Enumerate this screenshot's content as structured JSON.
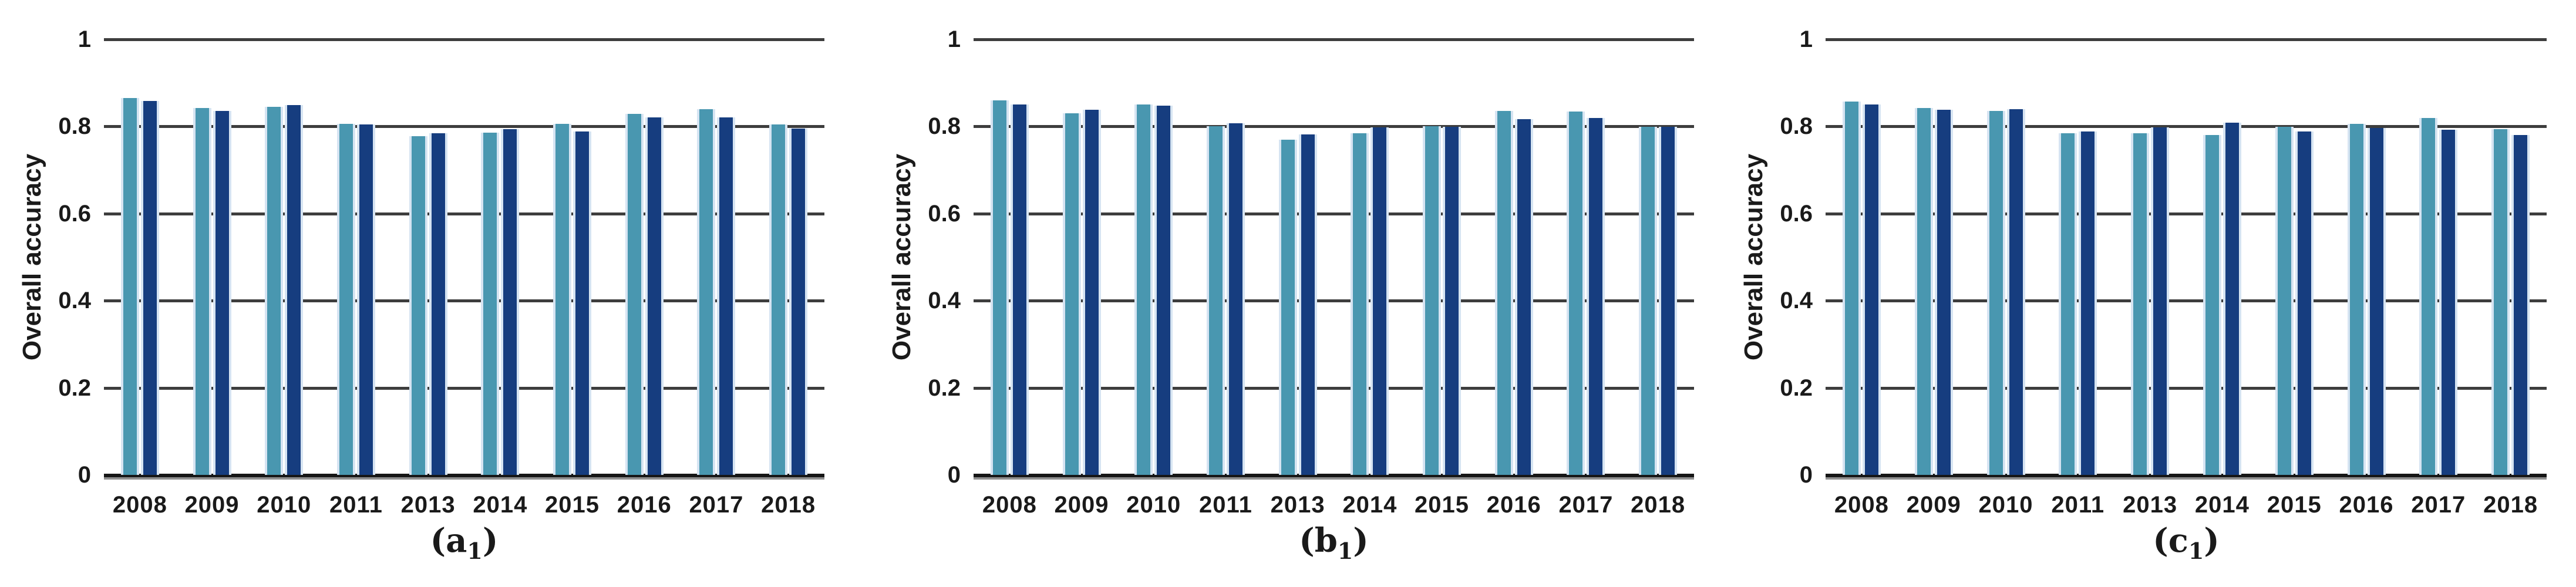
{
  "figure": {
    "ylabel": "Overall accuracy",
    "ytick_labels": [
      "1",
      "0.8",
      "0.6",
      "0.4",
      "0.2",
      "0"
    ],
    "colors": {
      "series_light_blue": "#4997b0",
      "series_dark_blue": "#163d7f",
      "bar_edge_stripe": "#d6e4f2",
      "gridline": "#3d3d3d",
      "baseline": "#161616",
      "text": "#1a1a1a"
    }
  },
  "chart_data": [
    {
      "id": "a1",
      "type": "bar",
      "title": "",
      "xlabel": "",
      "ylabel": "Overall accuracy",
      "caption": {
        "prefix": "(",
        "letter": "a",
        "subscript": "1",
        "suffix": ")"
      },
      "categories": [
        "2008",
        "2009",
        "2010",
        "2011",
        "2013",
        "2014",
        "2015",
        "2016",
        "2017",
        "2018"
      ],
      "yticks": [
        1,
        0.8,
        0.6,
        0.4,
        0.2,
        0
      ],
      "ylim": [
        0,
        1
      ],
      "grid": "horizontal",
      "legend": "none",
      "series": [
        {
          "name": "light-blue",
          "color": "#4997b0",
          "values": [
            0.865,
            0.842,
            0.845,
            0.806,
            0.778,
            0.786,
            0.806,
            0.829,
            0.839,
            0.804
          ]
        },
        {
          "name": "dark-blue",
          "color": "#163d7f",
          "values": [
            0.858,
            0.835,
            0.849,
            0.804,
            0.785,
            0.794,
            0.789,
            0.821,
            0.821,
            0.795
          ]
        }
      ]
    },
    {
      "id": "b1",
      "type": "bar",
      "title": "",
      "xlabel": "",
      "ylabel": "Overall accuracy",
      "caption": {
        "prefix": "(",
        "letter": "b",
        "subscript": "1",
        "suffix": ")"
      },
      "categories": [
        "2008",
        "2009",
        "2010",
        "2011",
        "2013",
        "2014",
        "2015",
        "2016",
        "2017",
        "2018"
      ],
      "yticks": [
        1,
        0.8,
        0.6,
        0.4,
        0.2,
        0
      ],
      "ylim": [
        0,
        1
      ],
      "grid": "horizontal",
      "legend": "none",
      "series": [
        {
          "name": "light-blue",
          "color": "#4997b0",
          "values": [
            0.86,
            0.83,
            0.851,
            0.801,
            0.769,
            0.784,
            0.8,
            0.835,
            0.834,
            0.799
          ]
        },
        {
          "name": "dark-blue",
          "color": "#163d7f",
          "values": [
            0.851,
            0.838,
            0.848,
            0.807,
            0.782,
            0.798,
            0.799,
            0.817,
            0.82,
            0.799
          ]
        }
      ]
    },
    {
      "id": "c1",
      "type": "bar",
      "title": "",
      "xlabel": "",
      "ylabel": "Overall accuracy",
      "caption": {
        "prefix": "(",
        "letter": "c",
        "subscript": "1",
        "suffix": ")"
      },
      "categories": [
        "2008",
        "2009",
        "2010",
        "2011",
        "2013",
        "2014",
        "2015",
        "2016",
        "2017",
        "2018"
      ],
      "yticks": [
        1,
        0.8,
        0.6,
        0.4,
        0.2,
        0
      ],
      "ylim": [
        0,
        1
      ],
      "grid": "horizontal",
      "legend": "none",
      "series": [
        {
          "name": "light-blue",
          "color": "#4997b0",
          "values": [
            0.857,
            0.843,
            0.835,
            0.784,
            0.785,
            0.781,
            0.799,
            0.806,
            0.819,
            0.794
          ]
        },
        {
          "name": "dark-blue",
          "color": "#163d7f",
          "values": [
            0.85,
            0.838,
            0.839,
            0.788,
            0.798,
            0.808,
            0.789,
            0.796,
            0.793,
            0.781
          ]
        }
      ]
    }
  ]
}
